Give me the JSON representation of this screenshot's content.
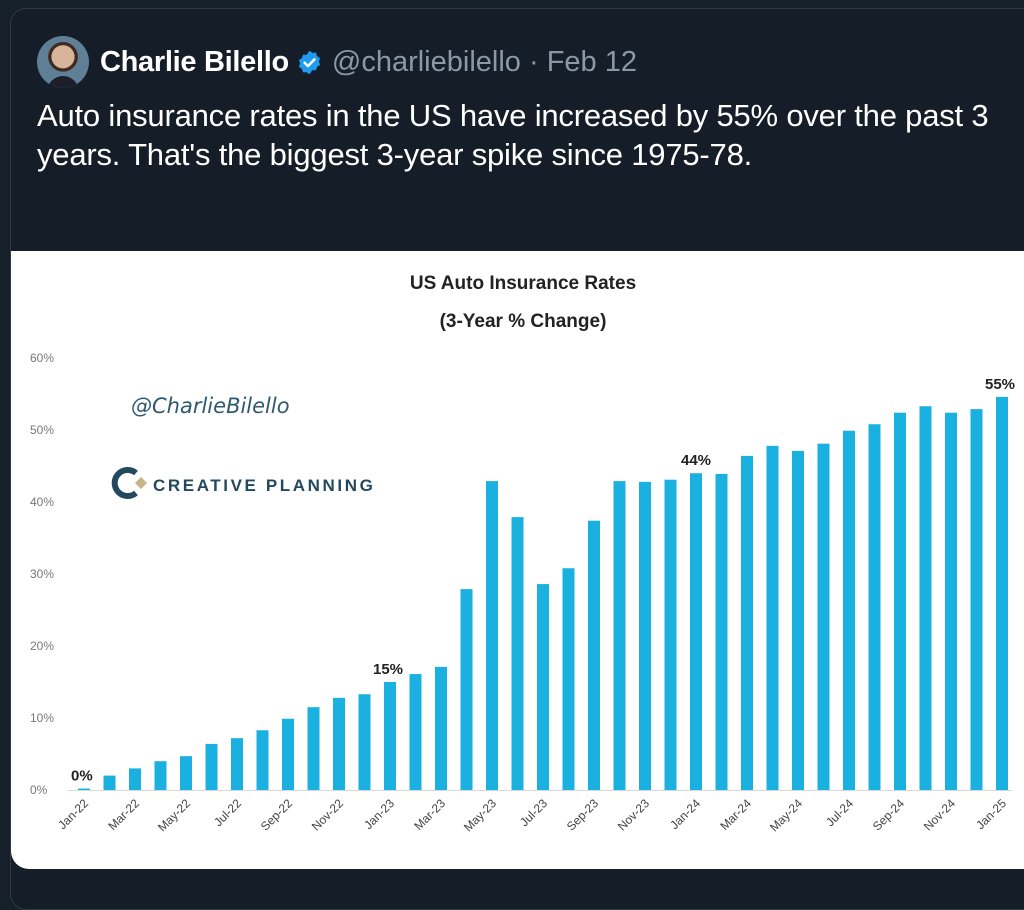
{
  "tweet": {
    "author_name": "Charlie Bilello",
    "handle": "@charliebilello",
    "separator": "·",
    "date": "Feb 12",
    "text": "Auto insurance rates in the US have increased by 55% over the past 3 years. That's the biggest 3-year spike since 1975-78.",
    "verified_color": "#1d9bf0"
  },
  "watermark": {
    "handle": "@CharlieBilello",
    "brand": "CREATIVE PLANNING"
  },
  "chart_data": {
    "type": "bar",
    "title": "US Auto Insurance Rates",
    "subtitle": "(3-Year % Change)",
    "xlabel": "",
    "ylabel": "",
    "ylim": [
      0,
      60
    ],
    "yticks": [
      "0%",
      "10%",
      "20%",
      "30%",
      "40%",
      "50%",
      "60%"
    ],
    "grid": false,
    "bar_color": "#1ab0e0",
    "categories": [
      "Jan-22",
      "Feb-22",
      "Mar-22",
      "Apr-22",
      "May-22",
      "Jun-22",
      "Jul-22",
      "Aug-22",
      "Sep-22",
      "Oct-22",
      "Nov-22",
      "Dec-22",
      "Jan-23",
      "Feb-23",
      "Mar-23",
      "Apr-23",
      "May-23",
      "Jun-23",
      "Jul-23",
      "Aug-23",
      "Sep-23",
      "Oct-23",
      "Nov-23",
      "Dec-23",
      "Jan-24",
      "Feb-24",
      "Mar-24",
      "Apr-24",
      "May-24",
      "Jun-24",
      "Jul-24",
      "Aug-24",
      "Sep-24",
      "Oct-24",
      "Nov-24",
      "Dec-24",
      "Jan-25"
    ],
    "xtick_labels": [
      "Jan-22",
      "Mar-22",
      "May-22",
      "Jul-22",
      "Sep-22",
      "Nov-22",
      "Jan-23",
      "Mar-23",
      "May-23",
      "Jul-23",
      "Sep-23",
      "Nov-23",
      "Jan-24",
      "Mar-24",
      "May-24",
      "Jul-24",
      "Sep-24",
      "Nov-24",
      "Jan-25"
    ],
    "values": [
      0.2,
      2.0,
      3.0,
      4.0,
      4.7,
      6.4,
      7.2,
      8.3,
      9.9,
      11.5,
      12.8,
      13.3,
      15.0,
      16.1,
      17.1,
      27.9,
      42.9,
      37.9,
      28.6,
      30.8,
      37.4,
      42.9,
      42.8,
      43.1,
      44.0,
      43.9,
      46.4,
      47.8,
      47.1,
      48.1,
      49.9,
      50.8,
      52.4,
      53.3,
      52.4,
      52.9,
      54.6
    ],
    "annotations": [
      {
        "category": "Jan-22",
        "label": "0%"
      },
      {
        "category": "Jan-23",
        "label": "15%"
      },
      {
        "category": "Jan-24",
        "label": "44%"
      },
      {
        "category": "Jan-25",
        "label": "55%"
      }
    ]
  }
}
